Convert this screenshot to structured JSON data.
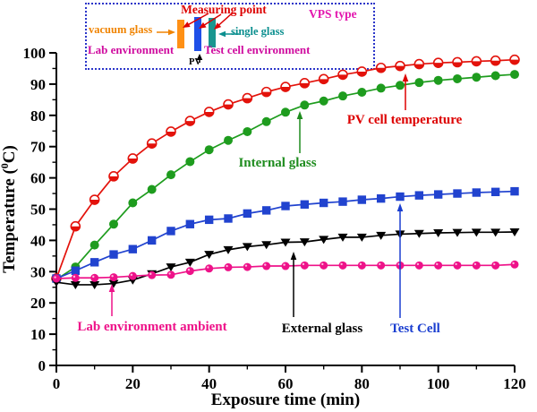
{
  "chart_data": {
    "type": "line",
    "title": "",
    "xlabel": "Exposure time (min)",
    "ylabel": "Temperature (0C)",
    "ylabel_parts": [
      "Temperature (",
      "0",
      "C)"
    ],
    "xlim": [
      0,
      120
    ],
    "ylim": [
      0,
      100
    ],
    "x_major_tick": 20,
    "x_minor_tick": 10,
    "y_major_tick": 10,
    "y_minor_tick": 5,
    "grid": false,
    "legend": "annotated-on-curves",
    "x": [
      0,
      5,
      10,
      15,
      20,
      25,
      30,
      35,
      40,
      45,
      50,
      55,
      60,
      65,
      70,
      75,
      80,
      85,
      90,
      95,
      100,
      105,
      110,
      115,
      120
    ],
    "series": [
      {
        "name": "PV cell temperature",
        "color": "#e3120b",
        "marker": "half-circle",
        "values": [
          27.8,
          44.5,
          53,
          60.5,
          66.2,
          71,
          74.8,
          78.2,
          81.1,
          83.5,
          85.5,
          87.5,
          89.1,
          90.3,
          91.6,
          93,
          94,
          95.2,
          95.8,
          96.4,
          96.8,
          97,
          97.3,
          97.5,
          97.8
        ]
      },
      {
        "name": "Internal glass",
        "color": "#1e9c1e",
        "marker": "circle",
        "values": [
          27.5,
          31.5,
          38.5,
          45.2,
          52,
          56.3,
          61,
          65.2,
          69,
          72,
          74.8,
          78,
          81,
          83.3,
          84.6,
          86.2,
          87.4,
          88.7,
          89.6,
          90.5,
          91.2,
          91.7,
          92.2,
          92.7,
          93.1
        ]
      },
      {
        "name": "Test Cell",
        "color": "#2143cf",
        "marker": "square",
        "values": [
          27.8,
          30.3,
          33,
          35.5,
          37.2,
          40,
          43,
          45.2,
          46.6,
          47,
          48.6,
          49.6,
          51,
          51.5,
          52,
          52.4,
          53,
          53.4,
          54,
          54.4,
          54.7,
          55,
          55.3,
          55.5,
          55.7
        ]
      },
      {
        "name": "External glass",
        "color": "#000000",
        "marker": "triangle-down",
        "values": [
          26.6,
          25.8,
          25.8,
          26.2,
          27.3,
          29.3,
          31.5,
          33,
          35.5,
          37,
          38,
          38.6,
          39.4,
          39.5,
          40.3,
          41,
          41,
          41.6,
          42,
          42.2,
          42.4,
          42.5,
          42.6,
          42.6,
          42.7
        ]
      },
      {
        "name": "Lab environment ambient",
        "color": "#ee1289",
        "marker": "sphere",
        "values": [
          27.8,
          28,
          28,
          28.2,
          28.6,
          28.9,
          29,
          30.2,
          31,
          31.4,
          31.5,
          31.8,
          31.8,
          32,
          32,
          32,
          32,
          32,
          32,
          32,
          32,
          32,
          32,
          32,
          32.3
        ]
      }
    ],
    "annotations": [
      {
        "text": "PV cell temperature",
        "color": "#dd0000",
        "tx": 452,
        "ty": 138,
        "ax": 453,
        "ay1": 123,
        "ay2": 82
      },
      {
        "text": "Internal glass",
        "color": "#1e8c1e",
        "tx": 310,
        "ty": 186,
        "ax": 335,
        "ay1": 171,
        "ay2": 124
      },
      {
        "text": "Lab environment ambient",
        "color": "#ee1289",
        "tx": 170,
        "ty": 369,
        "ax": 125,
        "ay1": 353,
        "ay2": 317
      },
      {
        "text": "External glass",
        "color": "#000000",
        "tx": 360,
        "ty": 371,
        "ax": 328,
        "ay1": 354,
        "ay2": 281
      },
      {
        "text": "Test Cell",
        "color": "#1a3ed0",
        "tx": 464,
        "ty": 371,
        "ax": 447,
        "ay1": 355,
        "ay2": 227
      }
    ]
  },
  "inset": {
    "measuring_point": "Measuring point",
    "vacuum_glass": "vacuum glass",
    "single_glass": "single glass",
    "lab_environment": "Lab environment",
    "test_cell_environment": "Test cell environment",
    "vps_type": "VPS type",
    "pv": "PV",
    "colors": {
      "border": "#2b35c9",
      "measuring_text": "#dd0000",
      "vacuum_text": "#f08300",
      "single_text": "#0c8f8f",
      "magenta_text": "#cf0c9f",
      "vps_text": "#e317ae",
      "pv_text": "#000000",
      "vacuum_bar": "#ff9015",
      "pv_bar": "#1f4fe8",
      "single_bar": "#19968f"
    }
  }
}
